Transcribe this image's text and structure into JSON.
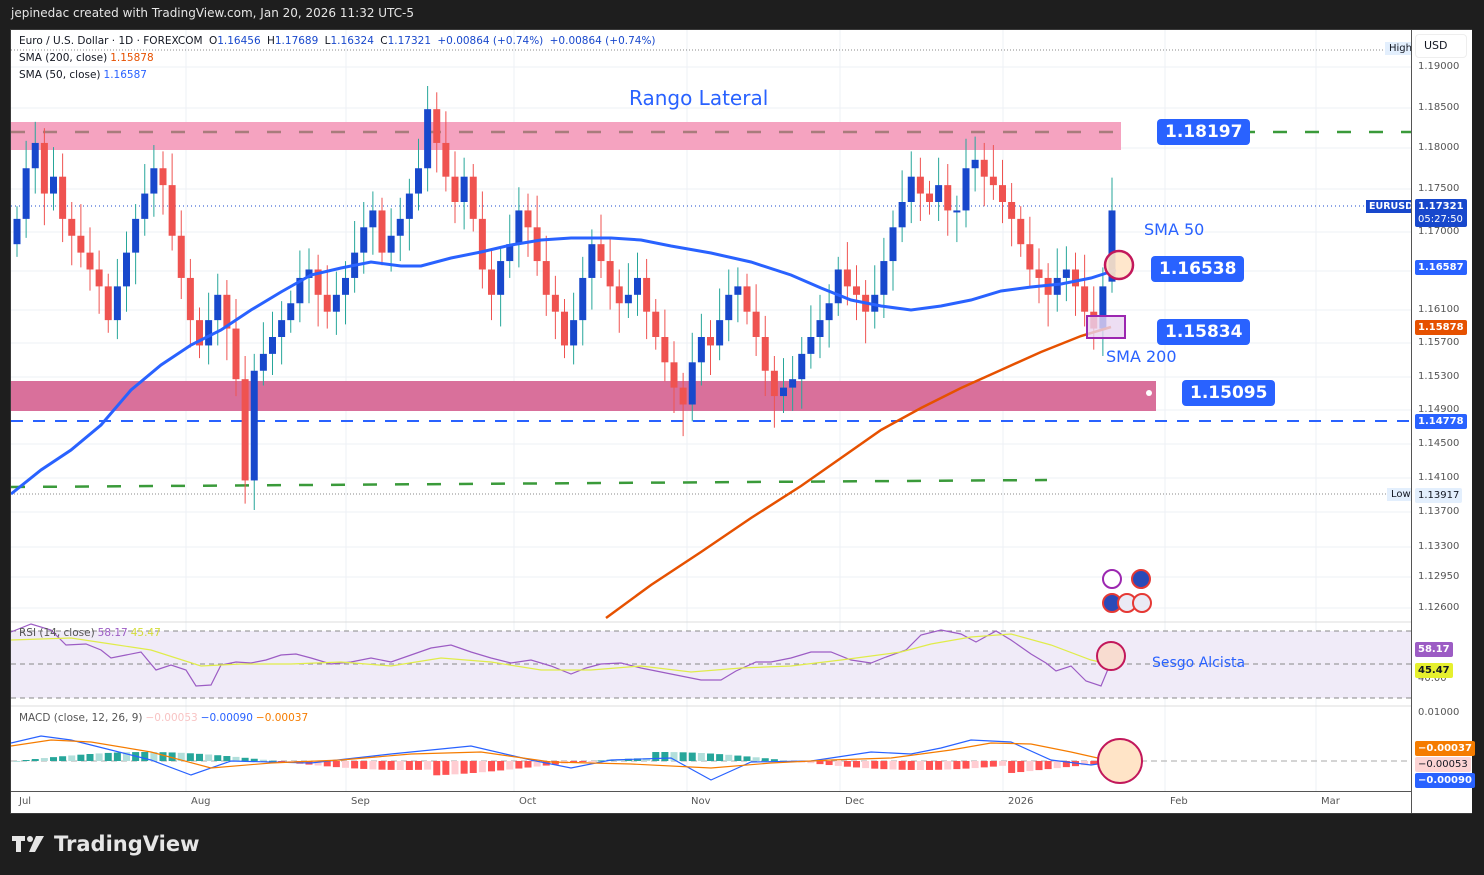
{
  "header": {
    "credit": "jepinedac created with TradingView.com, Jan 20, 2026 11:32 UTC-5"
  },
  "legend": {
    "symbol": "Euro / U.S. Dollar · 1D · FOREXCOM",
    "open_label": "O",
    "open": "1.16456",
    "high_label": "H",
    "high": "1.17689",
    "low_label": "L",
    "low": "1.16324",
    "close_label": "C",
    "close": "1.17321",
    "change1": "+0.00864 (+0.74%)",
    "change2": "+0.00864 (+0.74%)",
    "sma200_label": "SMA (200, close)",
    "sma200_value": "1.15878",
    "sma50_label": "SMA (50, close)",
    "sma50_value": "1.16587",
    "rsi_label": "RSI (14, close)",
    "rsi_value": "58.17",
    "rsi_ma_value": "45.47",
    "macd_label": "MACD (close, 12, 26, 9)",
    "macd_hist": "−0.00053",
    "macd_line": "−0.00090",
    "macd_signal": "−0.00037"
  },
  "price_scale": {
    "currency": "USD",
    "ticks": [
      "1.19000",
      "1.18500",
      "1.18000",
      "1.17500",
      "1.17000",
      "1.16100",
      "1.15700",
      "1.15300",
      "1.14900",
      "1.14500",
      "1.14100",
      "1.13700",
      "1.13300",
      "1.12950",
      "1.12600"
    ],
    "high_tag": "High",
    "low_tag": "Low",
    "low_value": "1.13917",
    "last_price": "1.17321",
    "countdown": "05:27:50",
    "symbol_tag": "EURUSD",
    "sma50_badge": "1.16587",
    "sma200_badge": "1.15878",
    "support_line_badge": "1.14778",
    "rsi_badge": "58.17",
    "rsi_ma_badge": "45.47",
    "rsi_tick": "40.00",
    "macd_tick": "0.01000",
    "macd_signal_badge": "−0.00037",
    "macd_hist_badge": "−0.00053",
    "macd_line_badge": "−0.00090"
  },
  "annotations": {
    "title": "Rango Lateral",
    "resistance_box": "1.18197",
    "sma50_text": "SMA 50",
    "sma50_box": "1.16538",
    "sma200_box": "1.15834",
    "sma200_text": "SMA 200",
    "support_box": "1.15095",
    "rsi_text": "Sesgo Alcista"
  },
  "time_axis": [
    "Jul",
    "Aug",
    "Sep",
    "Oct",
    "Nov",
    "Dec",
    "2026",
    "Feb",
    "Mar"
  ],
  "colors": {
    "up": "#1848cc",
    "down": "#ef5350",
    "up_wick": "#26a69a",
    "sma50": "#2962ff",
    "sma200": "#e65100",
    "resistance_zone": "#f5a3c0",
    "support_zone": "#d9709b",
    "rsi": "#9c5cc4",
    "rsi_ma": "#e0ec4a"
  },
  "footer": {
    "brand": "TradingView"
  },
  "chart_data": {
    "type": "candlestick",
    "title": "Euro / U.S. Dollar · 1D · FOREXCOM",
    "xlabel": "",
    "ylabel": "USD",
    "ylim": [
      1.124,
      1.192
    ],
    "x_ticks": [
      "Jul",
      "Aug",
      "Sep",
      "Oct",
      "Nov",
      "Dec",
      "2026",
      "Feb",
      "Mar"
    ],
    "ohlc_last": {
      "open": 1.16456,
      "high": 1.17689,
      "low": 1.16324,
      "close": 1.17321,
      "change": 0.00864,
      "change_pct": 0.74
    },
    "overlays": [
      {
        "name": "SMA (200, close)",
        "last": 1.15878
      },
      {
        "name": "SMA (50, close)",
        "last": 1.16587
      }
    ],
    "levels": [
      {
        "name": "Resistance (Rango Lateral)",
        "value": 1.18197
      },
      {
        "name": "SMA 50 marker",
        "value": 1.16538
      },
      {
        "name": "SMA 200 marker",
        "value": 1.15834
      },
      {
        "name": "Support zone",
        "value": 1.15095
      },
      {
        "name": "Support dashed",
        "value": 1.14778
      },
      {
        "name": "Low",
        "value": 1.13917
      }
    ],
    "indicators": {
      "rsi": {
        "period": 14,
        "value": 58.17,
        "ma": 45.47
      },
      "macd": {
        "fast": 12,
        "slow": 26,
        "signal": 9,
        "histogram": -0.00053,
        "macd": -0.0009,
        "signal_value": -0.00037
      }
    },
    "close_series_approx": [
      1.172,
      1.178,
      1.181,
      1.175,
      1.177,
      1.172,
      1.17,
      1.168,
      1.166,
      1.164,
      1.16,
      1.164,
      1.168,
      1.172,
      1.175,
      1.178,
      1.176,
      1.17,
      1.165,
      1.16,
      1.157,
      1.16,
      1.163,
      1.159,
      1.153,
      1.141,
      1.154,
      1.156,
      1.158,
      1.16,
      1.162,
      1.165,
      1.166,
      1.163,
      1.161,
      1.163,
      1.165,
      1.168,
      1.171,
      1.173,
      1.168,
      1.17,
      1.172,
      1.175,
      1.178,
      1.185,
      1.181,
      1.177,
      1.174,
      1.177,
      1.172,
      1.166,
      1.163,
      1.167,
      1.169,
      1.173,
      1.171,
      1.167,
      1.163,
      1.161,
      1.157,
      1.16,
      1.165,
      1.169,
      1.167,
      1.164,
      1.162,
      1.163,
      1.165,
      1.161,
      1.158,
      1.155,
      1.152,
      1.15,
      1.155,
      1.158,
      1.157,
      1.16,
      1.163,
      1.164,
      1.161,
      1.158,
      1.154,
      1.151,
      1.152,
      1.153,
      1.156,
      1.158,
      1.16,
      1.162,
      1.166,
      1.164,
      1.163,
      1.161,
      1.163,
      1.167,
      1.171,
      1.174,
      1.177,
      1.175,
      1.174,
      1.176,
      1.173,
      1.173,
      1.178,
      1.179,
      1.177,
      1.176,
      1.174,
      1.172,
      1.169,
      1.166,
      1.165,
      1.163,
      1.165,
      1.166,
      1.164,
      1.161,
      1.159,
      1.164,
      1.173
    ]
  }
}
